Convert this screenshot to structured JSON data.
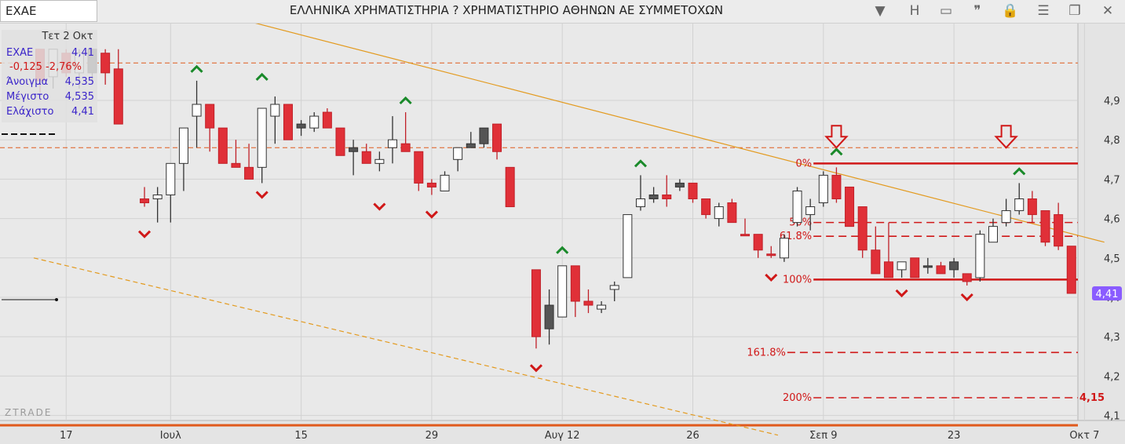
{
  "window": {
    "symbol": "ΕΧΑΕ",
    "title": "ΕΛΛΗΝΙΚΑ ΧΡΗΜΑΤΙΣΤΗΡΙΑ ? ΧΡΗΜΑΤΙΣΤΗΡΙΟ ΑΘΗΝΩΝ ΑΕ ΣΥΜΜΕΤΟΧΩΝ"
  },
  "toolbar": {
    "icons": [
      {
        "name": "dropdown-icon",
        "glyph": "▼"
      },
      {
        "name": "h-icon",
        "glyph": "H"
      },
      {
        "name": "panel-icon",
        "glyph": "▭"
      },
      {
        "name": "quote-icon",
        "glyph": "❞"
      },
      {
        "name": "lock-icon",
        "glyph": "🔒"
      },
      {
        "name": "menu-icon",
        "glyph": "☰"
      },
      {
        "name": "restore-icon",
        "glyph": "❐"
      },
      {
        "name": "close-icon",
        "glyph": "✕"
      }
    ]
  },
  "info": {
    "date": "Τετ 2 Οκτ",
    "symbol": "ΕΧΑΕ",
    "last": "4,41",
    "change": "-0,125",
    "change_pct": "-2,76%",
    "open_label": "Άνοιγμα",
    "open": "4,535",
    "high_label": "Μέγιστο",
    "high": "4,535",
    "low_label": "Ελάχιστο",
    "low": "4,41"
  },
  "chart_data": {
    "type": "candlestick",
    "y_range": [
      4.05,
      5.02
    ],
    "y_ticks": [
      "4,9",
      "4,8",
      "4,7",
      "4,6",
      "4,5",
      "4,4",
      "4,3",
      "4,2",
      "4,1"
    ],
    "y_tick_values": [
      4.9,
      4.8,
      4.7,
      4.6,
      4.5,
      4.4,
      4.3,
      4.2,
      4.1
    ],
    "x_ticks": [
      "17",
      "Ιουλ",
      "15",
      "29",
      "Αυγ 12",
      "26",
      "Σεπ 9",
      "23",
      "Οκτ 7"
    ],
    "x_tick_index": [
      2,
      10,
      20,
      30,
      40,
      50,
      60,
      70,
      80
    ],
    "current_price_label": "4,41",
    "current_price": 4.41,
    "target_label": "4,15",
    "target_value": 4.145,
    "watermark": "ZTRADE",
    "colors": {
      "up": "#ffffff",
      "down": "#e03038",
      "dark": "#555555",
      "fib": "#d01818",
      "trend": "#e39a1e",
      "accent": "#8a5cff"
    },
    "candles": [
      {
        "i": 0,
        "o": 5.03,
        "h": 5.03,
        "l": 4.92,
        "c": 4.95,
        "col": "down"
      },
      {
        "i": 1,
        "o": 4.96,
        "h": 5.03,
        "l": 4.93,
        "c": 5.03,
        "col": "up"
      },
      {
        "i": 2,
        "o": 5.02,
        "h": 5.03,
        "l": 4.96,
        "c": 4.97,
        "col": "down"
      },
      {
        "i": 3,
        "o": 4.97,
        "h": 5.03,
        "l": 4.93,
        "c": 5.02,
        "col": "up"
      },
      {
        "i": 4,
        "o": 5.03,
        "h": 5.03,
        "l": 4.95,
        "c": 4.97,
        "col": "dark"
      },
      {
        "i": 5,
        "o": 5.02,
        "h": 5.03,
        "l": 4.94,
        "c": 4.97,
        "col": "down"
      },
      {
        "i": 6,
        "o": 4.98,
        "h": 5.03,
        "l": 4.84,
        "c": 4.84,
        "col": "down"
      },
      {
        "i": 8,
        "o": 4.64,
        "h": 4.68,
        "l": 4.63,
        "c": 4.65,
        "col": "down"
      },
      {
        "i": 9,
        "o": 4.65,
        "h": 4.68,
        "l": 4.59,
        "c": 4.66,
        "col": "up"
      },
      {
        "i": 10,
        "o": 4.66,
        "h": 4.74,
        "l": 4.59,
        "c": 4.74,
        "col": "up"
      },
      {
        "i": 11,
        "o": 4.74,
        "h": 4.83,
        "l": 4.67,
        "c": 4.83,
        "col": "up"
      },
      {
        "i": 12,
        "o": 4.86,
        "h": 4.95,
        "l": 4.78,
        "c": 4.89,
        "col": "up"
      },
      {
        "i": 13,
        "o": 4.89,
        "h": 4.89,
        "l": 4.77,
        "c": 4.83,
        "col": "down"
      },
      {
        "i": 14,
        "o": 4.83,
        "h": 4.83,
        "l": 4.74,
        "c": 4.74,
        "col": "down"
      },
      {
        "i": 15,
        "o": 4.74,
        "h": 4.8,
        "l": 4.73,
        "c": 4.73,
        "col": "down"
      },
      {
        "i": 16,
        "o": 4.73,
        "h": 4.79,
        "l": 4.7,
        "c": 4.7,
        "col": "down"
      },
      {
        "i": 17,
        "o": 4.73,
        "h": 4.88,
        "l": 4.69,
        "c": 4.88,
        "col": "up"
      },
      {
        "i": 18,
        "o": 4.86,
        "h": 4.91,
        "l": 4.79,
        "c": 4.89,
        "col": "up"
      },
      {
        "i": 19,
        "o": 4.89,
        "h": 4.89,
        "l": 4.8,
        "c": 4.8,
        "col": "down"
      },
      {
        "i": 20,
        "o": 4.83,
        "h": 4.85,
        "l": 4.81,
        "c": 4.84,
        "col": "dark"
      },
      {
        "i": 21,
        "o": 4.83,
        "h": 4.87,
        "l": 4.82,
        "c": 4.86,
        "col": "up"
      },
      {
        "i": 22,
        "o": 4.87,
        "h": 4.88,
        "l": 4.83,
        "c": 4.83,
        "col": "down"
      },
      {
        "i": 23,
        "o": 4.83,
        "h": 4.83,
        "l": 4.76,
        "c": 4.76,
        "col": "down"
      },
      {
        "i": 24,
        "o": 4.77,
        "h": 4.8,
        "l": 4.71,
        "c": 4.78,
        "col": "dark"
      },
      {
        "i": 25,
        "o": 4.77,
        "h": 4.79,
        "l": 4.74,
        "c": 4.74,
        "col": "down"
      },
      {
        "i": 26,
        "o": 4.74,
        "h": 4.77,
        "l": 4.72,
        "c": 4.75,
        "col": "up"
      },
      {
        "i": 27,
        "o": 4.78,
        "h": 4.86,
        "l": 4.74,
        "c": 4.8,
        "col": "up"
      },
      {
        "i": 28,
        "o": 4.79,
        "h": 4.87,
        "l": 4.77,
        "c": 4.77,
        "col": "down"
      },
      {
        "i": 29,
        "o": 4.77,
        "h": 4.77,
        "l": 4.67,
        "c": 4.69,
        "col": "down"
      },
      {
        "i": 30,
        "o": 4.69,
        "h": 4.7,
        "l": 4.66,
        "c": 4.68,
        "col": "down"
      },
      {
        "i": 31,
        "o": 4.67,
        "h": 4.72,
        "l": 4.67,
        "c": 4.71,
        "col": "up"
      },
      {
        "i": 32,
        "o": 4.75,
        "h": 4.78,
        "l": 4.72,
        "c": 4.78,
        "col": "up"
      },
      {
        "i": 33,
        "o": 4.78,
        "h": 4.82,
        "l": 4.78,
        "c": 4.79,
        "col": "dark"
      },
      {
        "i": 34,
        "o": 4.79,
        "h": 4.83,
        "l": 4.78,
        "c": 4.83,
        "col": "dark"
      },
      {
        "i": 35,
        "o": 4.84,
        "h": 4.84,
        "l": 4.75,
        "c": 4.77,
        "col": "down"
      },
      {
        "i": 36,
        "o": 4.73,
        "h": 4.73,
        "l": 4.63,
        "c": 4.63,
        "col": "down"
      },
      {
        "i": 38,
        "o": 4.47,
        "h": 4.47,
        "l": 4.27,
        "c": 4.3,
        "col": "down"
      },
      {
        "i": 39,
        "o": 4.32,
        "h": 4.42,
        "l": 4.28,
        "c": 4.38,
        "col": "dark"
      },
      {
        "i": 40,
        "o": 4.35,
        "h": 4.48,
        "l": 4.35,
        "c": 4.48,
        "col": "up"
      },
      {
        "i": 41,
        "o": 4.48,
        "h": 4.48,
        "l": 4.35,
        "c": 4.39,
        "col": "down"
      },
      {
        "i": 42,
        "o": 4.39,
        "h": 4.42,
        "l": 4.36,
        "c": 4.38,
        "col": "down"
      },
      {
        "i": 43,
        "o": 4.37,
        "h": 4.39,
        "l": 4.36,
        "c": 4.38,
        "col": "up"
      },
      {
        "i": 44,
        "o": 4.42,
        "h": 4.44,
        "l": 4.39,
        "c": 4.43,
        "col": "up"
      },
      {
        "i": 45,
        "o": 4.45,
        "h": 4.61,
        "l": 4.45,
        "c": 4.61,
        "col": "up"
      },
      {
        "i": 46,
        "o": 4.63,
        "h": 4.71,
        "l": 4.62,
        "c": 4.65,
        "col": "up"
      },
      {
        "i": 47,
        "o": 4.65,
        "h": 4.68,
        "l": 4.64,
        "c": 4.66,
        "col": "dark"
      },
      {
        "i": 48,
        "o": 4.66,
        "h": 4.71,
        "l": 4.63,
        "c": 4.65,
        "col": "down"
      },
      {
        "i": 49,
        "o": 4.68,
        "h": 4.7,
        "l": 4.67,
        "c": 4.69,
        "col": "dark"
      },
      {
        "i": 50,
        "o": 4.69,
        "h": 4.69,
        "l": 4.64,
        "c": 4.65,
        "col": "down"
      },
      {
        "i": 51,
        "o": 4.65,
        "h": 4.65,
        "l": 4.6,
        "c": 4.61,
        "col": "down"
      },
      {
        "i": 52,
        "o": 4.6,
        "h": 4.64,
        "l": 4.58,
        "c": 4.63,
        "col": "up"
      },
      {
        "i": 53,
        "o": 4.64,
        "h": 4.65,
        "l": 4.59,
        "c": 4.59,
        "col": "down"
      },
      {
        "i": 54,
        "o": 4.56,
        "h": 4.6,
        "l": 4.56,
        "c": 4.56,
        "col": "down"
      },
      {
        "i": 55,
        "o": 4.56,
        "h": 4.56,
        "l": 4.5,
        "c": 4.52,
        "col": "down"
      },
      {
        "i": 56,
        "o": 4.51,
        "h": 4.53,
        "l": 4.5,
        "c": 4.51,
        "col": "down"
      },
      {
        "i": 57,
        "o": 4.5,
        "h": 4.56,
        "l": 4.49,
        "c": 4.55,
        "col": "up"
      },
      {
        "i": 58,
        "o": 4.59,
        "h": 4.68,
        "l": 4.58,
        "c": 4.67,
        "col": "up"
      },
      {
        "i": 59,
        "o": 4.63,
        "h": 4.65,
        "l": 4.57,
        "c": 4.61,
        "col": "up"
      },
      {
        "i": 60,
        "o": 4.64,
        "h": 4.72,
        "l": 4.63,
        "c": 4.71,
        "col": "up"
      },
      {
        "i": 61,
        "o": 4.71,
        "h": 4.73,
        "l": 4.64,
        "c": 4.65,
        "col": "down"
      },
      {
        "i": 62,
        "o": 4.68,
        "h": 4.68,
        "l": 4.58,
        "c": 4.58,
        "col": "down"
      },
      {
        "i": 63,
        "o": 4.63,
        "h": 4.63,
        "l": 4.5,
        "c": 4.52,
        "col": "down"
      },
      {
        "i": 64,
        "o": 4.52,
        "h": 4.58,
        "l": 4.46,
        "c": 4.46,
        "col": "down"
      },
      {
        "i": 65,
        "o": 4.49,
        "h": 4.59,
        "l": 4.45,
        "c": 4.45,
        "col": "down"
      },
      {
        "i": 66,
        "o": 4.47,
        "h": 4.49,
        "l": 4.45,
        "c": 4.49,
        "col": "up"
      },
      {
        "i": 67,
        "o": 4.5,
        "h": 4.5,
        "l": 4.45,
        "c": 4.45,
        "col": "down"
      },
      {
        "i": 68,
        "o": 4.48,
        "h": 4.5,
        "l": 4.46,
        "c": 4.48,
        "col": "dark"
      },
      {
        "i": 69,
        "o": 4.48,
        "h": 4.49,
        "l": 4.46,
        "c": 4.46,
        "col": "down"
      },
      {
        "i": 70,
        "o": 4.47,
        "h": 4.5,
        "l": 4.45,
        "c": 4.49,
        "col": "dark"
      },
      {
        "i": 71,
        "o": 4.46,
        "h": 4.46,
        "l": 4.43,
        "c": 4.44,
        "col": "down"
      },
      {
        "i": 72,
        "o": 4.45,
        "h": 4.57,
        "l": 4.44,
        "c": 4.56,
        "col": "up"
      },
      {
        "i": 73,
        "o": 4.54,
        "h": 4.6,
        "l": 4.54,
        "c": 4.58,
        "col": "up"
      },
      {
        "i": 74,
        "o": 4.59,
        "h": 4.65,
        "l": 4.58,
        "c": 4.62,
        "col": "up"
      },
      {
        "i": 75,
        "o": 4.62,
        "h": 4.69,
        "l": 4.61,
        "c": 4.65,
        "col": "up"
      },
      {
        "i": 76,
        "o": 4.65,
        "h": 4.67,
        "l": 4.59,
        "c": 4.61,
        "col": "down"
      },
      {
        "i": 77,
        "o": 4.62,
        "h": 4.62,
        "l": 4.53,
        "c": 4.54,
        "col": "down"
      },
      {
        "i": 78,
        "o": 4.61,
        "h": 4.64,
        "l": 4.52,
        "c": 4.53,
        "col": "down"
      },
      {
        "i": 79,
        "o": 4.53,
        "h": 4.53,
        "l": 4.41,
        "c": 4.41,
        "col": "down"
      }
    ],
    "markers_up": [
      {
        "i": 12,
        "v": 4.98
      },
      {
        "i": 17,
        "v": 4.96
      },
      {
        "i": 28,
        "v": 4.9
      },
      {
        "i": 46,
        "v": 4.74
      },
      {
        "i": 40,
        "v": 4.52
      },
      {
        "i": 61,
        "v": 4.77
      },
      {
        "i": 75,
        "v": 4.72
      }
    ],
    "markers_down": [
      {
        "i": 8,
        "v": 4.56
      },
      {
        "i": 17,
        "v": 4.66
      },
      {
        "i": 26,
        "v": 4.63
      },
      {
        "i": 30,
        "v": 4.61
      },
      {
        "i": 38,
        "v": 4.22
      },
      {
        "i": 56,
        "v": 4.45
      },
      {
        "i": 66,
        "v": 4.41
      },
      {
        "i": 71,
        "v": 4.4
      }
    ],
    "arrows_down": [
      {
        "i": 61,
        "v": 4.78
      },
      {
        "i": 74,
        "v": 4.78
      }
    ],
    "fib_levels": [
      {
        "label": "0%",
        "v": 4.74,
        "style": "solid",
        "from": 59
      },
      {
        "label": "50%",
        "v": 4.59,
        "style": "dash",
        "from": 59
      },
      {
        "label": "61.8%",
        "v": 4.555,
        "style": "dash",
        "from": 59
      },
      {
        "label": "100%",
        "v": 4.445,
        "style": "solid",
        "from": 59
      },
      {
        "label": "161.8%",
        "v": 4.26,
        "style": "dash",
        "from": 57
      },
      {
        "label": "200%",
        "v": 4.145,
        "style": "dash",
        "from": 59
      }
    ],
    "horizontal_lines": [
      {
        "v": 4.995,
        "style": "dash",
        "color": "orange"
      },
      {
        "v": 4.78,
        "style": "dash",
        "color": "orange"
      },
      {
        "v": 4.075,
        "style": "solid",
        "color": "orange"
      }
    ],
    "trendlines": [
      {
        "i1": -8,
        "v1": 5.31,
        "i2": 82,
        "v2": 4.54,
        "style": "solid"
      },
      {
        "i1": 0,
        "v1": 4.5,
        "i2": 57,
        "v2": 4.05,
        "style": "dash"
      }
    ]
  }
}
